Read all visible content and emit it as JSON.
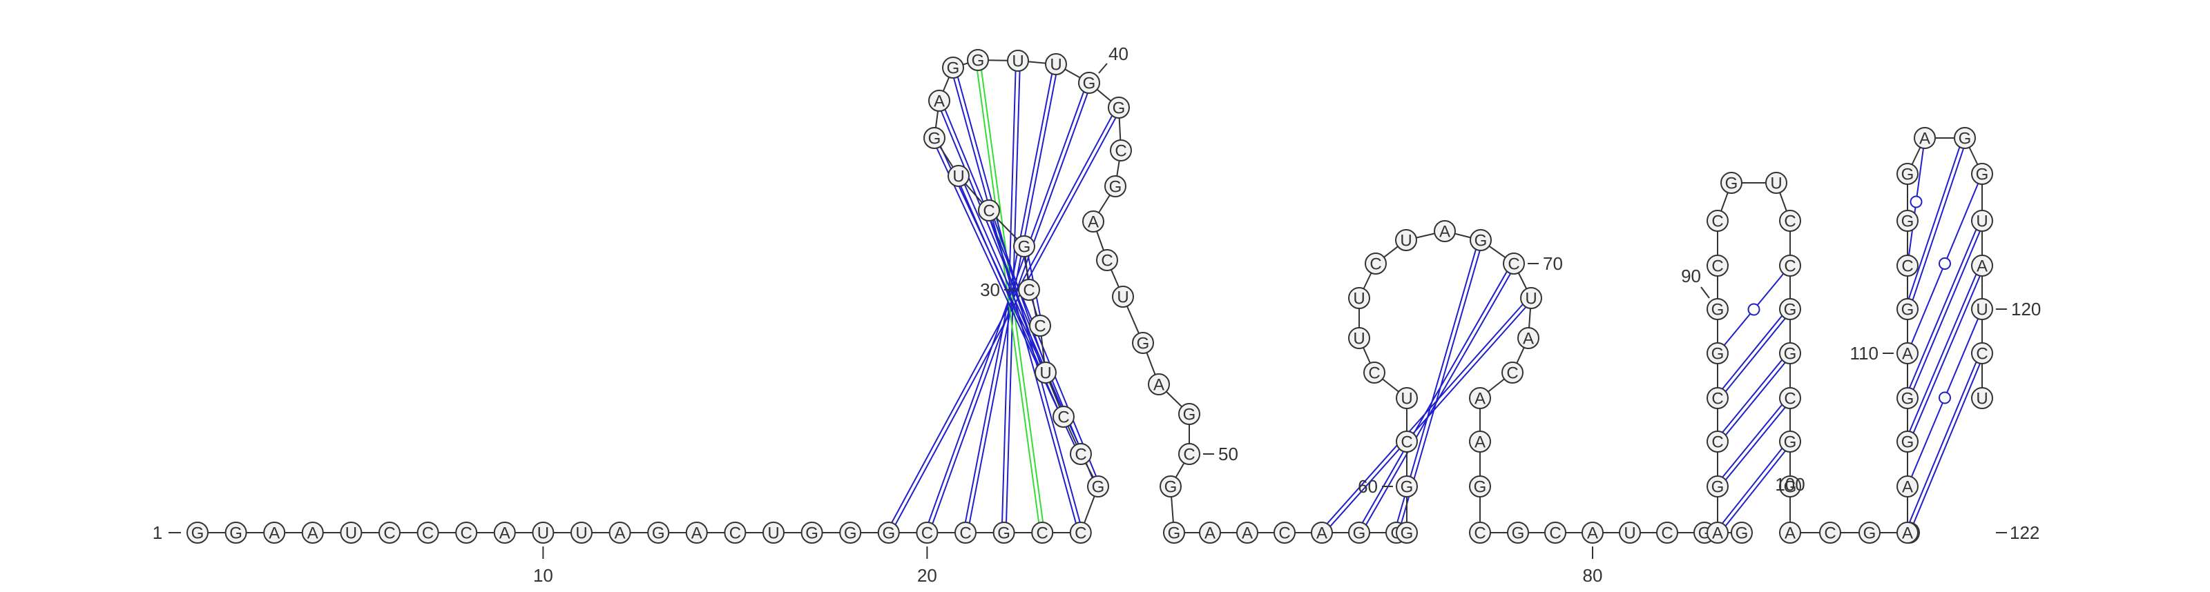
{
  "sequence": "GGAAUCCCAUUAGACUGGGCCGCCGCCUCCGCUGAGGUUGGCGACUGAGCGGAACAGCGGCUCUUCUAGCUACAAGCGCAUCGGAGCCGGCCGUCCGGCGGACGGAAGGAGCGGAGGUAUCU",
  "numbering": {
    "start_label": "1",
    "end_label": "122",
    "labels": [
      {
        "text": "10",
        "pos": 10
      },
      {
        "text": "20",
        "pos": 20
      },
      {
        "text": "30",
        "pos": 30
      },
      {
        "text": "40",
        "pos": 40
      },
      {
        "text": "50",
        "pos": 50
      },
      {
        "text": "60",
        "pos": 60
      },
      {
        "text": "70",
        "pos": 70
      },
      {
        "text": "80",
        "pos": 80
      },
      {
        "text": "90",
        "pos": 90
      },
      {
        "text": "100",
        "pos": 100
      },
      {
        "text": "110",
        "pos": 110
      },
      {
        "text": "120",
        "pos": 120
      }
    ]
  },
  "base_pairs": [
    {
      "i": 19,
      "j": 41,
      "type": "canonical"
    },
    {
      "i": 20,
      "j": 40,
      "type": "canonical"
    },
    {
      "i": 21,
      "j": 39,
      "type": "canonical"
    },
    {
      "i": 22,
      "j": 38,
      "type": "canonical"
    },
    {
      "i": 23,
      "j": 37,
      "type": "noncanonical"
    },
    {
      "i": 24,
      "j": 36,
      "type": "canonical"
    },
    {
      "i": 25,
      "j": 35,
      "type": "canonical"
    },
    {
      "i": 26,
      "j": 34,
      "type": "canonical"
    },
    {
      "i": 27,
      "j": 33,
      "type": "canonical"
    },
    {
      "i": 28,
      "j": 32,
      "type": "canonical"
    },
    {
      "i": 29,
      "j": 31,
      "type": "canonical"
    },
    {
      "i": 30,
      "j": 30,
      "type": "canonical"
    },
    {
      "i": 56,
      "j": 71,
      "type": "canonical"
    },
    {
      "i": 57,
      "j": 70,
      "type": "canonical"
    },
    {
      "i": 58,
      "j": 69,
      "type": "canonical"
    },
    {
      "i": 85,
      "j": 100,
      "type": "canonical"
    },
    {
      "i": 86,
      "j": 99,
      "type": "canonical"
    },
    {
      "i": 87,
      "j": 98,
      "type": "canonical"
    },
    {
      "i": 88,
      "j": 97,
      "type": "canonical"
    },
    {
      "i": 89,
      "j": 96,
      "type": "wobble"
    },
    {
      "i": 106,
      "j": 121,
      "type": "canonical"
    },
    {
      "i": 107,
      "j": 120,
      "type": "wobble"
    },
    {
      "i": 108,
      "j": 119,
      "type": "canonical"
    },
    {
      "i": 109,
      "j": 118,
      "type": "canonical"
    },
    {
      "i": 110,
      "j": 117,
      "type": "wobble"
    },
    {
      "i": 111,
      "j": 116,
      "type": "canonical"
    },
    {
      "i": 112,
      "j": 115,
      "type": "wobble"
    }
  ],
  "colors": {
    "canonical_pair": "#1f1fcc",
    "noncanonical_pair": "#33dd33",
    "backbone": "#333333",
    "nucleotide_fill": "#f2f2f2"
  }
}
